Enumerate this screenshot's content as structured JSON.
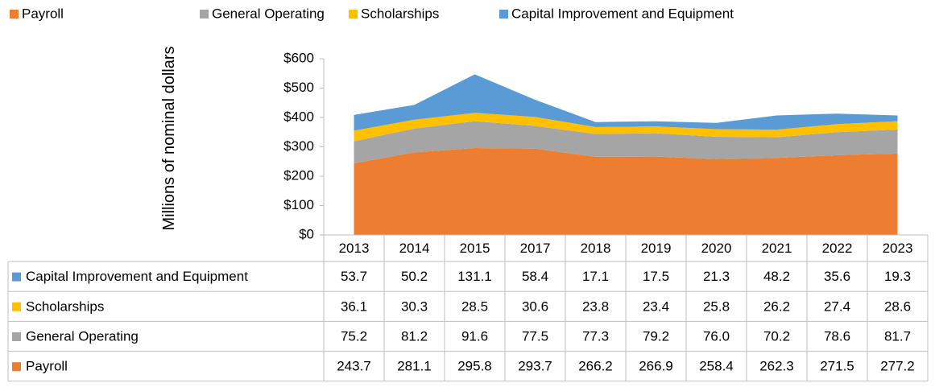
{
  "chart_data": {
    "type": "stacked_area",
    "y_label": "Millions of nominal dollars",
    "categories": [
      "2013",
      "2014",
      "2015",
      "2017",
      "2018",
      "2019",
      "2020",
      "2021",
      "2022",
      "2023"
    ],
    "series": [
      {
        "name": "Payroll",
        "color": "#ed7d31",
        "values": [
          243.7,
          281.1,
          295.8,
          293.7,
          266.2,
          266.9,
          258.4,
          262.3,
          271.5,
          277.2
        ]
      },
      {
        "name": "General Operating",
        "color": "#a5a5a5",
        "values": [
          75.2,
          81.2,
          91.6,
          77.5,
          77.3,
          79.2,
          76.0,
          70.2,
          78.6,
          81.7
        ],
        "value_labels": [
          "75.2",
          "81.2",
          "91.6",
          "77.5",
          "77.3",
          "79.2",
          "76.0",
          "70.2",
          "78.6",
          "81.7"
        ]
      },
      {
        "name": "Scholarships",
        "color": "#ffc000",
        "values": [
          36.1,
          30.3,
          28.5,
          30.6,
          23.8,
          23.4,
          25.8,
          26.2,
          27.4,
          28.6
        ]
      },
      {
        "name": "Capital Improvement and Equipment",
        "color": "#5b9bd5",
        "values": [
          53.7,
          50.2,
          131.1,
          58.4,
          17.1,
          17.5,
          21.3,
          48.2,
          35.6,
          19.3
        ]
      }
    ],
    "ylim": [
      0,
      600
    ],
    "yticks": [
      {
        "value": 0,
        "label": "$0"
      },
      {
        "value": 100,
        "label": "$100"
      },
      {
        "value": 200,
        "label": "$200"
      },
      {
        "value": 300,
        "label": "$300"
      },
      {
        "value": 400,
        "label": "$400"
      },
      {
        "value": 500,
        "label": "$500"
      },
      {
        "value": 600,
        "label": "$600"
      }
    ],
    "legend": "top",
    "data_table": true
  }
}
